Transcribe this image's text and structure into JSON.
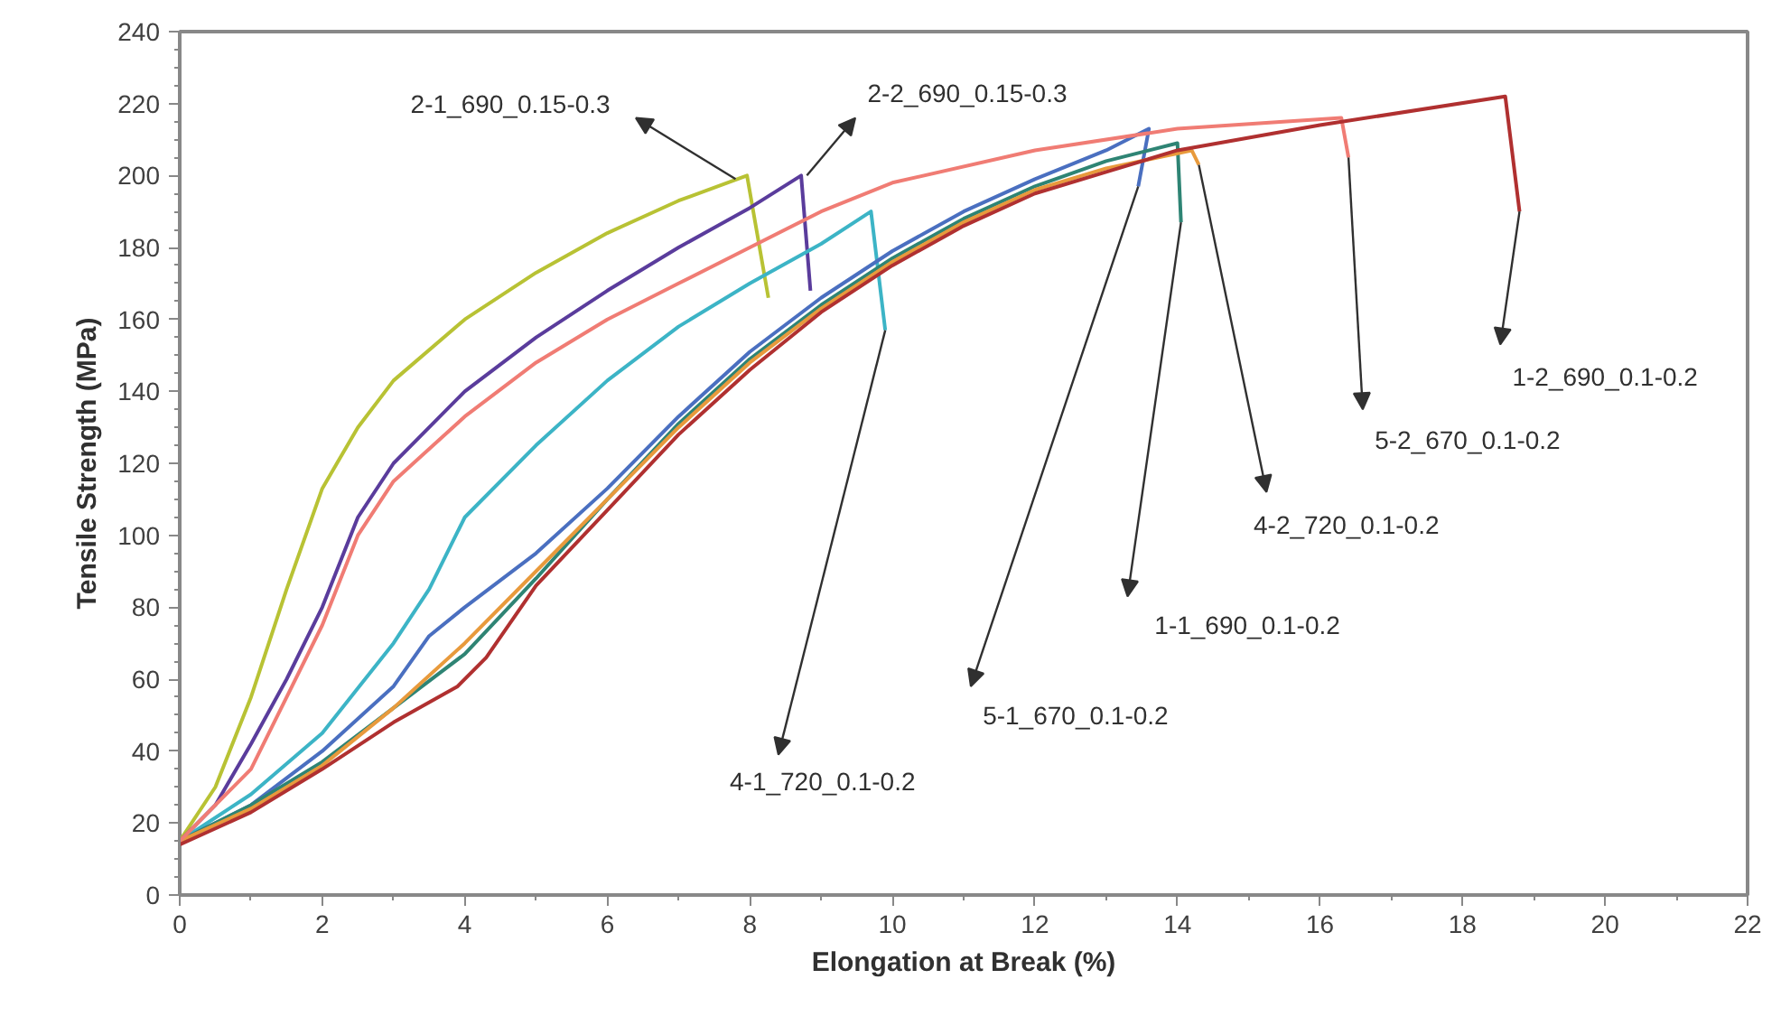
{
  "chart_data": {
    "type": "line",
    "xlabel": "Elongation at Break (%)",
    "ylabel": "Tensile Strength (MPa)",
    "xlim": [
      0,
      22
    ],
    "xticks": [
      0,
      2,
      4,
      6,
      8,
      10,
      12,
      14,
      16,
      18,
      20,
      22
    ],
    "ylim": [
      0,
      240
    ],
    "yticks": [
      0,
      20,
      40,
      60,
      80,
      100,
      120,
      140,
      160,
      180,
      200,
      220,
      240
    ],
    "grid": false,
    "marker": "none",
    "line_style": "solid",
    "series": [
      {
        "color": "#b8c234",
        "x": [
          0,
          0.5,
          1,
          1.5,
          2,
          2.5,
          3,
          4,
          5,
          6,
          7,
          7.96,
          8.26
        ],
        "values": [
          15,
          30,
          55,
          85,
          113,
          130,
          143,
          160,
          173,
          184,
          193,
          200,
          166
        ]
      },
      {
        "color": "#5a3c9c",
        "x": [
          0,
          0.5,
          1,
          1.5,
          2,
          2.5,
          3,
          4,
          5,
          6,
          7,
          8,
          8.72,
          8.85
        ],
        "values": [
          15,
          25,
          42,
          60,
          80,
          105,
          120,
          140,
          155,
          168,
          180,
          191,
          200,
          168
        ]
      },
      {
        "color": "#3cb4c6",
        "x": [
          0,
          1,
          2,
          3,
          3.5,
          4,
          5,
          6,
          7,
          8,
          9,
          9.7,
          9.9
        ],
        "values": [
          15,
          28,
          45,
          70,
          85,
          105,
          125,
          143,
          158,
          170,
          181,
          190,
          157
        ]
      },
      {
        "color": "#4a6fc0",
        "x": [
          0,
          1,
          2,
          3,
          3.5,
          4,
          5,
          6,
          7,
          8,
          9,
          10,
          11,
          12,
          13,
          13.6,
          13.45
        ],
        "values": [
          15,
          25,
          40,
          58,
          72,
          80,
          95,
          113,
          133,
          151,
          166,
          179,
          190,
          199,
          207,
          213,
          197
        ]
      },
      {
        "color": "#2e8474",
        "x": [
          0,
          1,
          2,
          3,
          4,
          5,
          6,
          7,
          8,
          9,
          10,
          11,
          12,
          13,
          14,
          14.05
        ],
        "values": [
          15,
          25,
          37,
          52,
          67,
          88,
          110,
          131,
          149,
          164,
          177,
          188,
          197,
          204,
          209,
          187
        ]
      },
      {
        "color": "#e89a3c",
        "x": [
          0,
          1,
          2,
          3,
          4,
          5,
          6,
          7,
          8,
          9,
          10,
          11,
          12,
          13,
          14.2,
          14.3
        ],
        "values": [
          15,
          24,
          36,
          52,
          70,
          90,
          110,
          130,
          148,
          163,
          176,
          187,
          196,
          202,
          207,
          203
        ]
      },
      {
        "color": "#f07c74",
        "x": [
          0,
          1,
          2,
          2.5,
          3,
          4,
          5,
          6,
          7,
          8,
          9,
          10,
          12,
          14,
          16.3,
          16.4
        ],
        "values": [
          15,
          35,
          75,
          100,
          115,
          133,
          148,
          160,
          170,
          180,
          190,
          198,
          207,
          213,
          216,
          205
        ]
      },
      {
        "color": "#b03030",
        "x": [
          0,
          1,
          2,
          3,
          3.9,
          4.3,
          5,
          6,
          7,
          8,
          9,
          10,
          11,
          12,
          13,
          14,
          16,
          18.6,
          18.8
        ],
        "values": [
          14,
          23,
          35,
          48,
          58,
          66,
          86,
          107,
          128,
          146,
          162,
          175,
          186,
          195,
          201,
          207,
          214,
          222,
          190
        ]
      }
    ],
    "annotations": [
      {
        "text": "2-1_690_0.15-0.3",
        "x": 7.8,
        "y": 199
      },
      {
        "text": "2-2_690_0.15-0.3",
        "x": 8.8,
        "y": 200
      },
      {
        "text": "4-1_720_0.1-0.2",
        "x": 9.9,
        "y": 157
      },
      {
        "text": "5-1_670_0.1-0.2",
        "x": 13.45,
        "y": 197
      },
      {
        "text": "1-1_690_0.1-0.2",
        "x": 14.05,
        "y": 187
      },
      {
        "text": "4-2_720_0.1-0.2",
        "x": 14.3,
        "y": 203
      },
      {
        "text": "5-2_670_0.1-0.2",
        "x": 16.4,
        "y": 205
      },
      {
        "text": "1-2_690_0.1-0.2",
        "x": 18.8,
        "y": 190
      }
    ]
  }
}
